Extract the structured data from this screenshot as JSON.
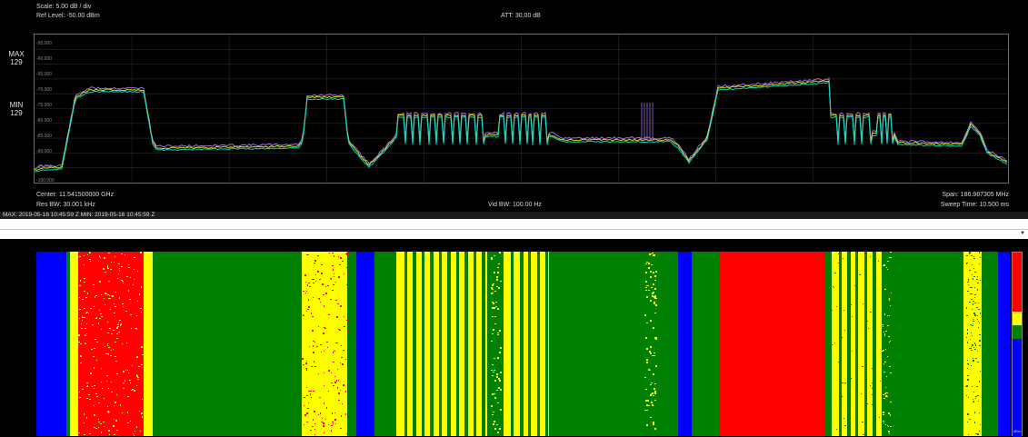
{
  "header": {
    "scale": "Scale: 5.00 dB / div",
    "ref_level": "Ref Level: -50.00 dBm",
    "att": "ATT: 30.00 dB"
  },
  "side_labels": {
    "max_title": "MAX",
    "max_value": "129",
    "min_title": "MIN",
    "min_value": "129"
  },
  "y_ticks": [
    "-55.000",
    "-60.000",
    "-65.000",
    "-70.000",
    "-75.000",
    "-80.000",
    "-85.000",
    "-90.000",
    "-95.000",
    "-100.000"
  ],
  "footer": {
    "center": "Center: 11.541500000 GHz",
    "res_bw": "Res BW: 30.001 kHz",
    "vid_bw": "Vid BW: 100.00 Hz",
    "span": "Span: 186.987305 MHz",
    "sweep": "Sweep Time: 10.500 ms"
  },
  "status": "MAX: 2019-05-16 10:45:59 Z   MIN: 2019-05-16 10:45:59 Z",
  "waterfall": {
    "colorbar_unit": "dBm",
    "colors": {
      "red": "#ff0000",
      "yellow": "#ffff00",
      "green": "#008000",
      "blue": "#0000ff",
      "cyan": "#00d8d8",
      "purple": "#a070e0"
    }
  }
}
